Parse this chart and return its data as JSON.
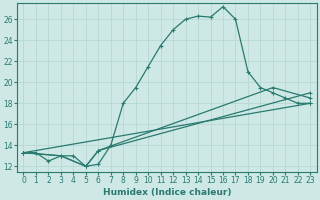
{
  "xlabel": "Humidex (Indice chaleur)",
  "xlim": [
    -0.5,
    23.5
  ],
  "ylim": [
    11.5,
    27.5
  ],
  "yticks": [
    12,
    14,
    16,
    18,
    20,
    22,
    24,
    26
  ],
  "xticks": [
    0,
    1,
    2,
    3,
    4,
    5,
    6,
    7,
    8,
    9,
    10,
    11,
    12,
    13,
    14,
    15,
    16,
    17,
    18,
    19,
    20,
    21,
    22,
    23
  ],
  "bg_color": "#cde8e5",
  "line_color": "#2a7a70",
  "grid_color": "#b8d8d4",
  "lines": [
    {
      "x": [
        0,
        1,
        2,
        3,
        4,
        5,
        6,
        7,
        8,
        9,
        10,
        11,
        12,
        13,
        14,
        15,
        16,
        17,
        18,
        19,
        20,
        21,
        22,
        23
      ],
      "y": [
        13.3,
        13.3,
        12.5,
        13.0,
        13.0,
        12.0,
        12.2,
        14.0,
        18.0,
        19.5,
        21.5,
        23.5,
        25.0,
        26.0,
        26.3,
        26.2,
        27.2,
        26.0,
        21.0,
        19.5,
        19.0,
        18.5,
        18.0,
        18.0
      ]
    },
    {
      "x": [
        0,
        3,
        5,
        6,
        23
      ],
      "y": [
        13.3,
        13.0,
        12.0,
        13.5,
        19.0
      ]
    },
    {
      "x": [
        0,
        3,
        5,
        6,
        20,
        23
      ],
      "y": [
        13.3,
        13.0,
        12.0,
        13.5,
        19.5,
        18.5
      ]
    },
    {
      "x": [
        0,
        23
      ],
      "y": [
        13.3,
        18.0
      ]
    }
  ]
}
